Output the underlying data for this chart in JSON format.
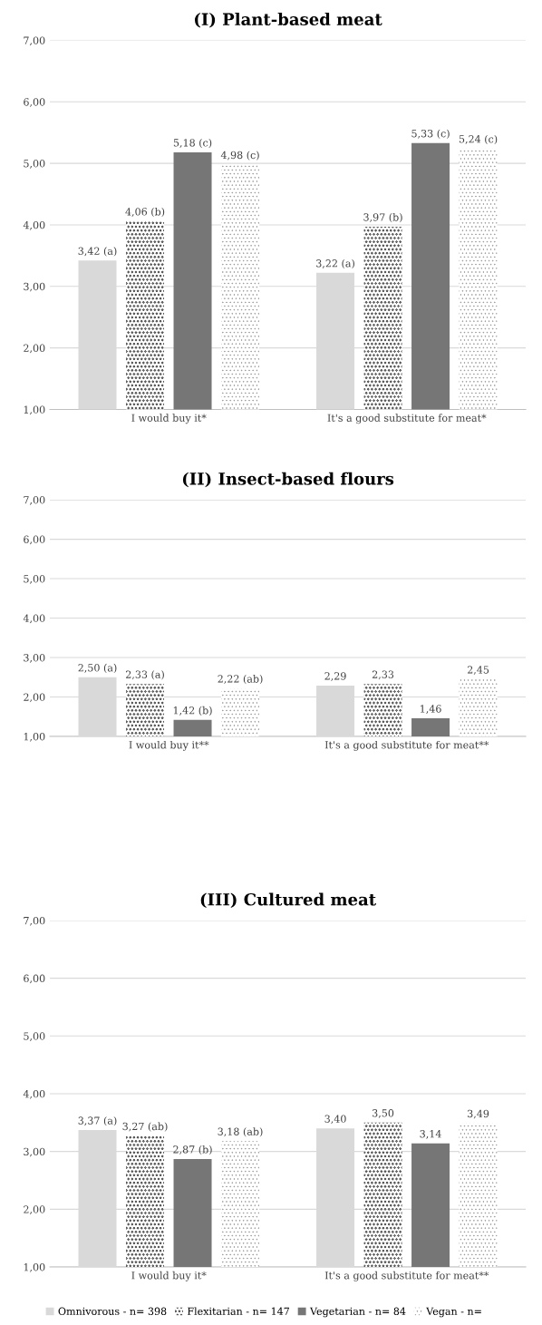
{
  "chart_data": [
    {
      "type": "bar",
      "title": "(I) Plant-based meat",
      "categories": [
        "I would buy it*",
        "It's a good substitute for meat*"
      ],
      "ylim": [
        1,
        7
      ],
      "yticks": [
        {
          "value": 1,
          "label": "1,00"
        },
        {
          "value": 2,
          "label": "2,00"
        },
        {
          "value": 3,
          "label": "3,00"
        },
        {
          "value": 4,
          "label": "4,00"
        },
        {
          "value": 5,
          "label": "5,00"
        },
        {
          "value": 6,
          "label": "6,00"
        },
        {
          "value": 7,
          "label": "7,00"
        }
      ],
      "grid": "y",
      "legend": false,
      "series": [
        {
          "color": "#d9d9d9",
          "values": [
            3.42,
            3.22
          ],
          "value_labels": [
            "3,42 (a)",
            "3,22 (a)"
          ]
        },
        {
          "color": "#404040",
          "values": [
            4.06,
            3.97
          ],
          "value_labels": [
            "4,06 (b)",
            "3,97 (b)"
          ]
        },
        {
          "color": "#767676",
          "values": [
            5.18,
            5.33
          ],
          "value_labels": [
            "5,18 (c)",
            "5,33 (c)"
          ]
        },
        {
          "color": "#8c8c8c",
          "values": [
            4.98,
            5.24
          ],
          "value_labels": [
            "4,98 (c)",
            "5,24 (c)"
          ]
        }
      ]
    },
    {
      "type": "bar",
      "title": "(II) Insect-based flours",
      "categories": [
        "I would buy it**",
        "It's a good substitute for meat**"
      ],
      "ylim": [
        1,
        7
      ],
      "yticks": [
        {
          "value": 1,
          "label": "1,00"
        },
        {
          "value": 2,
          "label": "2,00"
        },
        {
          "value": 3,
          "label": "3,00"
        },
        {
          "value": 4,
          "label": "4,00"
        },
        {
          "value": 5,
          "label": "5,00"
        },
        {
          "value": 6,
          "label": "6,00"
        },
        {
          "value": 7,
          "label": "7,00"
        }
      ],
      "grid": "y",
      "legend": false,
      "series": [
        {
          "color": "#d9d9d9",
          "values": [
            2.5,
            2.29
          ],
          "value_labels": [
            "2,50 (a)",
            "2,29"
          ]
        },
        {
          "color": "#404040",
          "values": [
            2.33,
            2.33
          ],
          "value_labels": [
            "2,33 (a)",
            "2,33"
          ]
        },
        {
          "color": "#767676",
          "values": [
            1.42,
            1.46
          ],
          "value_labels": [
            "1,42 (b)",
            "1,46"
          ]
        },
        {
          "color": "#8c8c8c",
          "values": [
            2.22,
            2.45
          ],
          "value_labels": [
            "2,22 (ab)",
            "2,45"
          ]
        }
      ]
    },
    {
      "type": "bar",
      "title": "(III) Cultured meat",
      "categories": [
        "I would buy it*",
        "It's a good substitute for meat**"
      ],
      "ylim": [
        1,
        7
      ],
      "yticks": [
        {
          "value": 1,
          "label": "1,00"
        },
        {
          "value": 2,
          "label": "2,00"
        },
        {
          "value": 3,
          "label": "3,00"
        },
        {
          "value": 4,
          "label": "4,00"
        },
        {
          "value": 5,
          "label": "5,00"
        },
        {
          "value": 6,
          "label": "6,00"
        },
        {
          "value": 7,
          "label": "7,00"
        }
      ],
      "grid": "y",
      "legend": "bottom",
      "series": [
        {
          "name": "Omnivorous - n= 398",
          "color": "#d9d9d9",
          "values": [
            3.37,
            3.4
          ],
          "value_labels": [
            "3,37 (a)",
            "3,40"
          ]
        },
        {
          "name": "Flexitarian - n= 147",
          "color": "#404040",
          "values": [
            3.27,
            3.5
          ],
          "value_labels": [
            "3,27 (ab)",
            "3,50"
          ]
        },
        {
          "name": "Vegetarian - n= 84",
          "color": "#767676",
          "values": [
            2.87,
            3.14
          ],
          "value_labels": [
            "2,87 (b)",
            "3,14"
          ]
        },
        {
          "name": "Vegan - n=",
          "color": "#8c8c8c",
          "values": [
            3.18,
            3.49
          ],
          "value_labels": [
            "3,18 (ab)",
            "3,49"
          ]
        }
      ]
    }
  ]
}
